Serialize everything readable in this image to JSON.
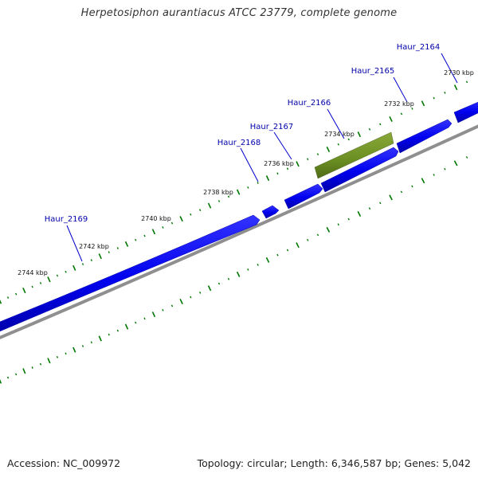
{
  "title": "Herpetosiphon aurantiacus ATCC 23779, complete genome",
  "footer": {
    "accession": "Accession: NC_009972",
    "summary": "Topology: circular; Length: 6,346,587 bp; Genes: 5,042"
  },
  "colors": {
    "gene_forward": "#0000ee",
    "gene_highlight": "#6b8e23",
    "backbone": "#888888",
    "tick": "#007700",
    "label": "#0000aa",
    "leader": "#0000cc"
  },
  "genome_map": {
    "scale_labels": [
      "2730 kbp",
      "2732 kbp",
      "2734 kbp",
      "2736 kbp",
      "2738 kbp",
      "2740 kbp",
      "2742 kbp",
      "2744 kbp"
    ],
    "gene_labels": [
      "Haur_2164",
      "Haur_2165",
      "Haur_2166",
      "Haur_2167",
      "Haur_2168",
      "Haur_2169"
    ]
  }
}
